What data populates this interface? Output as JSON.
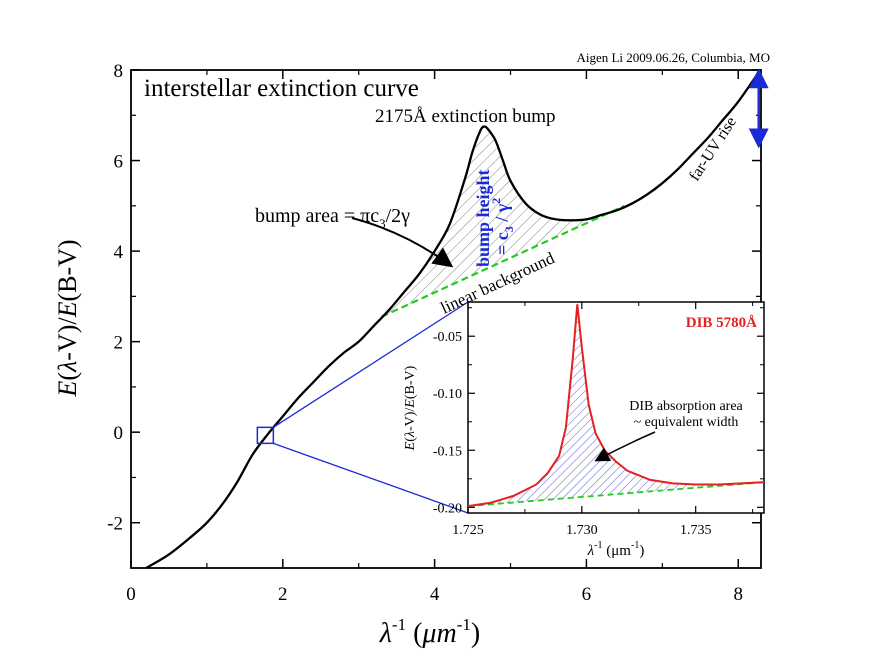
{
  "credit": "Aigen Li 2009.06.26, Columbia, MO",
  "chart_data": [
    {
      "type": "line",
      "title": "interstellar extinction curve",
      "xlabel": "λ-1 (μm-1)",
      "ylabel": "E(λ-V)/E(B-V)",
      "xlim": [
        0,
        8.3
      ],
      "ylim": [
        -3,
        8
      ],
      "xticks": [
        "0",
        "2",
        "4",
        "6",
        "8"
      ],
      "yticks": [
        "-2",
        "0",
        "2",
        "4",
        "6",
        "8"
      ],
      "series": [
        {
          "name": "extinction curve",
          "color": "#000000",
          "x": [
            0.2,
            0.5,
            0.8,
            1.0,
            1.2,
            1.4,
            1.6,
            1.8,
            2.0,
            2.2,
            2.4,
            2.6,
            2.8,
            3.0,
            3.2,
            3.4,
            3.6,
            3.8,
            4.0,
            4.2,
            4.4,
            4.5,
            4.6,
            4.65,
            4.7,
            4.8,
            4.9,
            5.0,
            5.2,
            5.4,
            5.6,
            5.8,
            6.0,
            6.2,
            6.4,
            6.6,
            6.8,
            7.0,
            7.2,
            7.4,
            7.6,
            7.8,
            8.0,
            8.27
          ],
          "y": [
            -3.0,
            -2.7,
            -2.3,
            -2.0,
            -1.6,
            -1.1,
            -0.5,
            -0.05,
            0.35,
            0.75,
            1.1,
            1.45,
            1.75,
            2.0,
            2.35,
            2.7,
            3.1,
            3.5,
            4.0,
            4.6,
            5.6,
            6.2,
            6.65,
            6.75,
            6.7,
            6.45,
            6.0,
            5.55,
            5.05,
            4.8,
            4.7,
            4.68,
            4.7,
            4.8,
            4.9,
            5.05,
            5.25,
            5.5,
            5.8,
            6.15,
            6.5,
            6.9,
            7.3,
            7.95
          ]
        },
        {
          "name": "linear background",
          "color": "#22cc22",
          "style": "dashed",
          "x": [
            3.3,
            6.5
          ],
          "y": [
            2.55,
            5.0
          ]
        }
      ],
      "annotations": {
        "bump_label": "2175Å extinction bump",
        "far_uv_label": "far-UV rise",
        "bump_area_text": "bump area = πc",
        "bump_area_sub": "3",
        "bump_area_tail": "/2γ",
        "bump_height_text": "bump height",
        "bump_height_formula": "= c",
        "bump_height_sub": "3",
        "bump_height_tail": " / γ",
        "bump_height_sup": "2",
        "background_label": "linear background",
        "zoom_box_center": [
          1.77,
          -0.07
        ]
      }
    },
    {
      "type": "line",
      "title": "DIB 5780Å",
      "xlabel": "λ-1 (μm-1)",
      "ylabel": "E(λ-V)/E(B-V)",
      "xlim": [
        1.725,
        1.738
      ],
      "ylim": [
        -0.205,
        -0.02
      ],
      "xticks": [
        "1.725",
        "1.730",
        "1.735"
      ],
      "yticks": [
        "-0.20",
        "-0.15",
        "-0.10",
        "-0.05"
      ],
      "series": [
        {
          "name": "DIB profile",
          "color": "#e52020",
          "x": [
            1.725,
            1.726,
            1.727,
            1.728,
            1.7285,
            1.729,
            1.7293,
            1.7296,
            1.7298,
            1.73,
            1.7303,
            1.7306,
            1.731,
            1.7315,
            1.732,
            1.733,
            1.734,
            1.735,
            1.736,
            1.737,
            1.738
          ],
          "y": [
            -0.199,
            -0.196,
            -0.19,
            -0.18,
            -0.17,
            -0.155,
            -0.13,
            -0.07,
            -0.022,
            -0.06,
            -0.11,
            -0.135,
            -0.15,
            -0.16,
            -0.168,
            -0.176,
            -0.179,
            -0.18,
            -0.18,
            -0.179,
            -0.178
          ]
        },
        {
          "name": "linear background",
          "color": "#22cc22",
          "style": "dashed",
          "x": [
            1.725,
            1.738
          ],
          "y": [
            -0.199,
            -0.178
          ]
        }
      ],
      "annotations": {
        "area_label_line1": "DIB absorption area",
        "area_label_line2": "~ equivalent width"
      }
    }
  ]
}
